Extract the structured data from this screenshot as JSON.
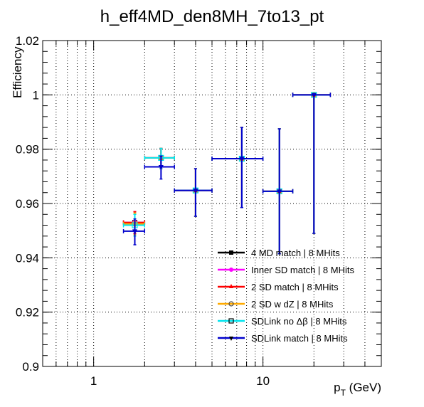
{
  "chart_data": {
    "type": "scatter",
    "title": "h_eff4MD_den8MH_7to13_pt",
    "xlabel": "p",
    "xlabel_sub": "T",
    "xlabel_unit": " (GeV)",
    "ylabel": "Efficiency",
    "xscale": "log",
    "xlim": [
      0.5,
      50
    ],
    "ylim": [
      0.9,
      1.02
    ],
    "grid": true,
    "x_tick_labels": [
      {
        "value": 1,
        "label": "1"
      },
      {
        "value": 10,
        "label": "10"
      }
    ],
    "y_tick_labels": [
      {
        "value": 0.9,
        "label": "0.9"
      },
      {
        "value": 0.92,
        "label": "0.92"
      },
      {
        "value": 0.94,
        "label": "0.94"
      },
      {
        "value": 0.96,
        "label": "0.96"
      },
      {
        "value": 0.98,
        "label": "0.98"
      },
      {
        "value": 1.0,
        "label": "1"
      },
      {
        "value": 1.02,
        "label": "1.02"
      }
    ],
    "legend_position": "bottom-right",
    "series": [
      {
        "name": "4 MD match | 8 MHits",
        "color": "#000000",
        "marker": "square",
        "points": [
          {
            "x": 1.75,
            "xlo": 1.5,
            "xhi": 2.0,
            "y": 0.953,
            "elo": 0.004,
            "ehi": 0.004
          },
          {
            "x": 2.5,
            "xlo": 2.0,
            "xhi": 3.0,
            "y": 0.9768,
            "elo": 0.004,
            "ehi": 0.0035
          },
          {
            "x": 4.0,
            "xlo": 3.0,
            "xhi": 5.0,
            "y": 0.9648,
            "elo": 0.0095,
            "ehi": 0.008
          },
          {
            "x": 7.5,
            "xlo": 5.0,
            "xhi": 10.0,
            "y": 0.9765,
            "elo": 0.018,
            "ehi": 0.0115
          },
          {
            "x": 12.5,
            "xlo": 10.0,
            "xhi": 15.0,
            "y": 0.9645,
            "elo": 0.023,
            "ehi": 0.023
          },
          {
            "x": 20.0,
            "xlo": 15.0,
            "xhi": 25.0,
            "y": 1.0,
            "elo": 0.051,
            "ehi": 0.0
          }
        ]
      },
      {
        "name": "Inner SD match | 8 MHits",
        "color": "#ff00ff",
        "marker": "circle",
        "points": [
          {
            "x": 1.75,
            "xlo": 1.5,
            "xhi": 2.0,
            "y": 0.953,
            "elo": 0.004,
            "ehi": 0.004
          },
          {
            "x": 2.5,
            "xlo": 2.0,
            "xhi": 3.0,
            "y": 0.9768,
            "elo": 0.004,
            "ehi": 0.0035
          },
          {
            "x": 4.0,
            "xlo": 3.0,
            "xhi": 5.0,
            "y": 0.9648,
            "elo": 0.0095,
            "ehi": 0.008
          },
          {
            "x": 7.5,
            "xlo": 5.0,
            "xhi": 10.0,
            "y": 0.9765,
            "elo": 0.018,
            "ehi": 0.0115
          },
          {
            "x": 12.5,
            "xlo": 10.0,
            "xhi": 15.0,
            "y": 0.9645,
            "elo": 0.023,
            "ehi": 0.023
          },
          {
            "x": 20.0,
            "xlo": 15.0,
            "xhi": 25.0,
            "y": 1.0,
            "elo": 0.051,
            "ehi": 0.0
          }
        ]
      },
      {
        "name": "2 SD match | 8 MHits",
        "color": "#ff0000",
        "marker": "triangle-up",
        "points": [
          {
            "x": 1.75,
            "xlo": 1.5,
            "xhi": 2.0,
            "y": 0.953,
            "elo": 0.004,
            "ehi": 0.004
          },
          {
            "x": 2.5,
            "xlo": 2.0,
            "xhi": 3.0,
            "y": 0.9768,
            "elo": 0.004,
            "ehi": 0.0035
          },
          {
            "x": 4.0,
            "xlo": 3.0,
            "xhi": 5.0,
            "y": 0.9648,
            "elo": 0.0095,
            "ehi": 0.008
          },
          {
            "x": 7.5,
            "xlo": 5.0,
            "xhi": 10.0,
            "y": 0.9765,
            "elo": 0.018,
            "ehi": 0.0115
          },
          {
            "x": 12.5,
            "xlo": 10.0,
            "xhi": 15.0,
            "y": 0.9645,
            "elo": 0.023,
            "ehi": 0.023
          },
          {
            "x": 20.0,
            "xlo": 15.0,
            "xhi": 25.0,
            "y": 1.0,
            "elo": 0.051,
            "ehi": 0.0
          }
        ]
      },
      {
        "name": "2 SD w dZ | 8 MHits",
        "color": "#ffaa00",
        "marker": "open-circle",
        "points": [
          {
            "x": 1.75,
            "xlo": 1.5,
            "xhi": 2.0,
            "y": 0.9525,
            "elo": 0.004,
            "ehi": 0.004
          },
          {
            "x": 2.5,
            "xlo": 2.0,
            "xhi": 3.0,
            "y": 0.9768,
            "elo": 0.004,
            "ehi": 0.0035
          },
          {
            "x": 4.0,
            "xlo": 3.0,
            "xhi": 5.0,
            "y": 0.9648,
            "elo": 0.0095,
            "ehi": 0.008
          },
          {
            "x": 7.5,
            "xlo": 5.0,
            "xhi": 10.0,
            "y": 0.9765,
            "elo": 0.018,
            "ehi": 0.0115
          },
          {
            "x": 12.5,
            "xlo": 10.0,
            "xhi": 15.0,
            "y": 0.9645,
            "elo": 0.023,
            "ehi": 0.023
          },
          {
            "x": 20.0,
            "xlo": 15.0,
            "xhi": 25.0,
            "y": 1.0,
            "elo": 0.051,
            "ehi": 0.0
          }
        ]
      },
      {
        "name": "SDLink no Δβ | 8 MHits",
        "color": "#00e5ee",
        "marker": "open-square",
        "points": [
          {
            "x": 1.75,
            "xlo": 1.5,
            "xhi": 2.0,
            "y": 0.952,
            "elo": 0.004,
            "ehi": 0.004
          },
          {
            "x": 2.5,
            "xlo": 2.0,
            "xhi": 3.0,
            "y": 0.9768,
            "elo": 0.004,
            "ehi": 0.0035
          },
          {
            "x": 4.0,
            "xlo": 3.0,
            "xhi": 5.0,
            "y": 0.9648,
            "elo": 0.0095,
            "ehi": 0.008
          },
          {
            "x": 7.5,
            "xlo": 5.0,
            "xhi": 10.0,
            "y": 0.9765,
            "elo": 0.018,
            "ehi": 0.0115
          },
          {
            "x": 12.5,
            "xlo": 10.0,
            "xhi": 15.0,
            "y": 0.9645,
            "elo": 0.023,
            "ehi": 0.023
          },
          {
            "x": 20.0,
            "xlo": 15.0,
            "xhi": 25.0,
            "y": 1.0,
            "elo": 0.051,
            "ehi": 0.0
          }
        ]
      },
      {
        "name": "SDLink match | 8 MHits",
        "color": "#0000cc",
        "marker": "triangle-down",
        "points": [
          {
            "x": 1.75,
            "xlo": 1.5,
            "xhi": 2.0,
            "y": 0.9498,
            "elo": 0.005,
            "ehi": 0.0045
          },
          {
            "x": 2.5,
            "xlo": 2.0,
            "xhi": 3.0,
            "y": 0.9735,
            "elo": 0.0045,
            "ehi": 0.004
          },
          {
            "x": 4.0,
            "xlo": 3.0,
            "xhi": 5.0,
            "y": 0.9648,
            "elo": 0.0095,
            "ehi": 0.008
          },
          {
            "x": 7.5,
            "xlo": 5.0,
            "xhi": 10.0,
            "y": 0.9765,
            "elo": 0.018,
            "ehi": 0.0115
          },
          {
            "x": 12.5,
            "xlo": 10.0,
            "xhi": 15.0,
            "y": 0.9645,
            "elo": 0.023,
            "ehi": 0.023
          },
          {
            "x": 20.0,
            "xlo": 15.0,
            "xhi": 25.0,
            "y": 1.0,
            "elo": 0.051,
            "ehi": 0.0
          }
        ]
      }
    ]
  }
}
